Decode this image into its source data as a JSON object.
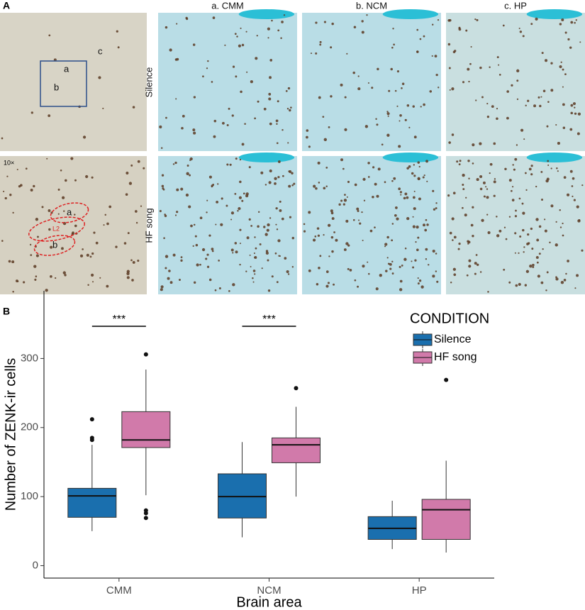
{
  "panel_a": {
    "label": "A",
    "columns": [
      "a. CMM",
      "b. NCM",
      "c. HP"
    ],
    "rows": [
      "Silence",
      "HF song"
    ],
    "magnification": "10×",
    "overview_marks": [
      "a",
      "b",
      "c"
    ],
    "region_marks": [
      "a",
      "L2",
      "b"
    ]
  },
  "chart_data": {
    "type": "box",
    "label": "B",
    "x_label": "Brain area",
    "y_label": "Number of ZENK-ir cells",
    "categories": [
      "CMM",
      "NCM",
      "HP"
    ],
    "legend_title": "CONDITION",
    "legend_position": "top-right",
    "annotations": [
      "***",
      "***"
    ],
    "ylim": [
      -18,
      398
    ],
    "yticks": [
      0,
      100,
      200,
      300
    ],
    "series": [
      {
        "name": "Silence",
        "color": "#1a6fae",
        "values": [
          {
            "min": 50,
            "q1": 70,
            "median": 101,
            "q3": 112,
            "max": 175,
            "outliers": [
              212,
              185,
              182
            ]
          },
          {
            "min": 41,
            "q1": 69,
            "median": 100,
            "q3": 133,
            "max": 179,
            "outliers": []
          },
          {
            "min": 24,
            "q1": 38,
            "median": 54,
            "q3": 71,
            "max": 94,
            "outliers": []
          }
        ]
      },
      {
        "name": "HF song",
        "color": "#d17aaa",
        "values": [
          {
            "min": 102,
            "q1": 171,
            "median": 182,
            "q3": 223,
            "max": 284,
            "outliers": [
              306,
              80,
              76,
              69
            ]
          },
          {
            "min": 100,
            "q1": 149,
            "median": 175,
            "q3": 185,
            "max": 230,
            "outliers": [
              257
            ]
          },
          {
            "min": 19,
            "q1": 38,
            "median": 81,
            "q3": 96,
            "max": 152,
            "outliers": [
              269
            ]
          }
        ]
      }
    ]
  }
}
